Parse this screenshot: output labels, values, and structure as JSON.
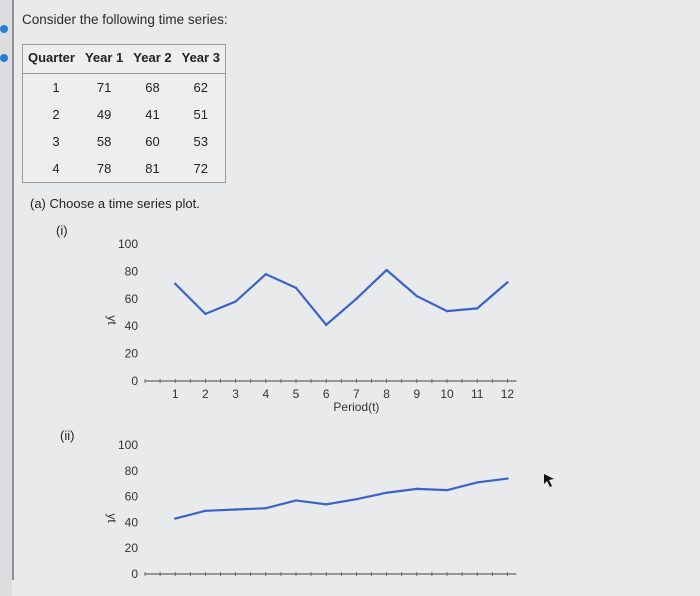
{
  "question": {
    "intro": "Consider the following time series:",
    "table": {
      "headers": [
        "Quarter",
        "Year 1",
        "Year 2",
        "Year 3"
      ],
      "rows": [
        [
          "1",
          "71",
          "68",
          "62"
        ],
        [
          "2",
          "49",
          "41",
          "51"
        ],
        [
          "3",
          "58",
          "60",
          "53"
        ],
        [
          "4",
          "78",
          "81",
          "72"
        ]
      ]
    },
    "part_a": "(a) Choose a time series plot.",
    "option_i": "(i)",
    "option_ii": "(ii)"
  },
  "chart_data": [
    {
      "type": "line",
      "ylabel": "yt",
      "xlabel": "Period(t)",
      "y_ticks": [
        "100",
        "80",
        "60",
        "40",
        "20",
        "0"
      ],
      "x_ticks": [
        "1",
        "2",
        "3",
        "4",
        "5",
        "6",
        "7",
        "8",
        "9",
        "10",
        "11",
        "12"
      ],
      "ylim": [
        0,
        100
      ],
      "xlim": [
        0,
        12
      ],
      "x": [
        1,
        2,
        3,
        4,
        5,
        6,
        7,
        8,
        9,
        10,
        11,
        12
      ],
      "values": [
        71,
        49,
        58,
        78,
        68,
        41,
        60,
        81,
        62,
        51,
        53,
        72
      ],
      "color": "#3a62c9"
    },
    {
      "type": "line",
      "ylabel": "yt",
      "y_ticks": [
        "100",
        "80",
        "60",
        "40",
        "20",
        "0"
      ],
      "ylim": [
        0,
        100
      ],
      "xlim": [
        0,
        12
      ],
      "x": [
        1,
        2,
        3,
        4,
        5,
        6,
        7,
        8,
        9,
        10,
        11,
        12
      ],
      "values": [
        43,
        49,
        50,
        51,
        57,
        54,
        58,
        63,
        66,
        65,
        71,
        74
      ],
      "color": "#3a62c9"
    }
  ]
}
